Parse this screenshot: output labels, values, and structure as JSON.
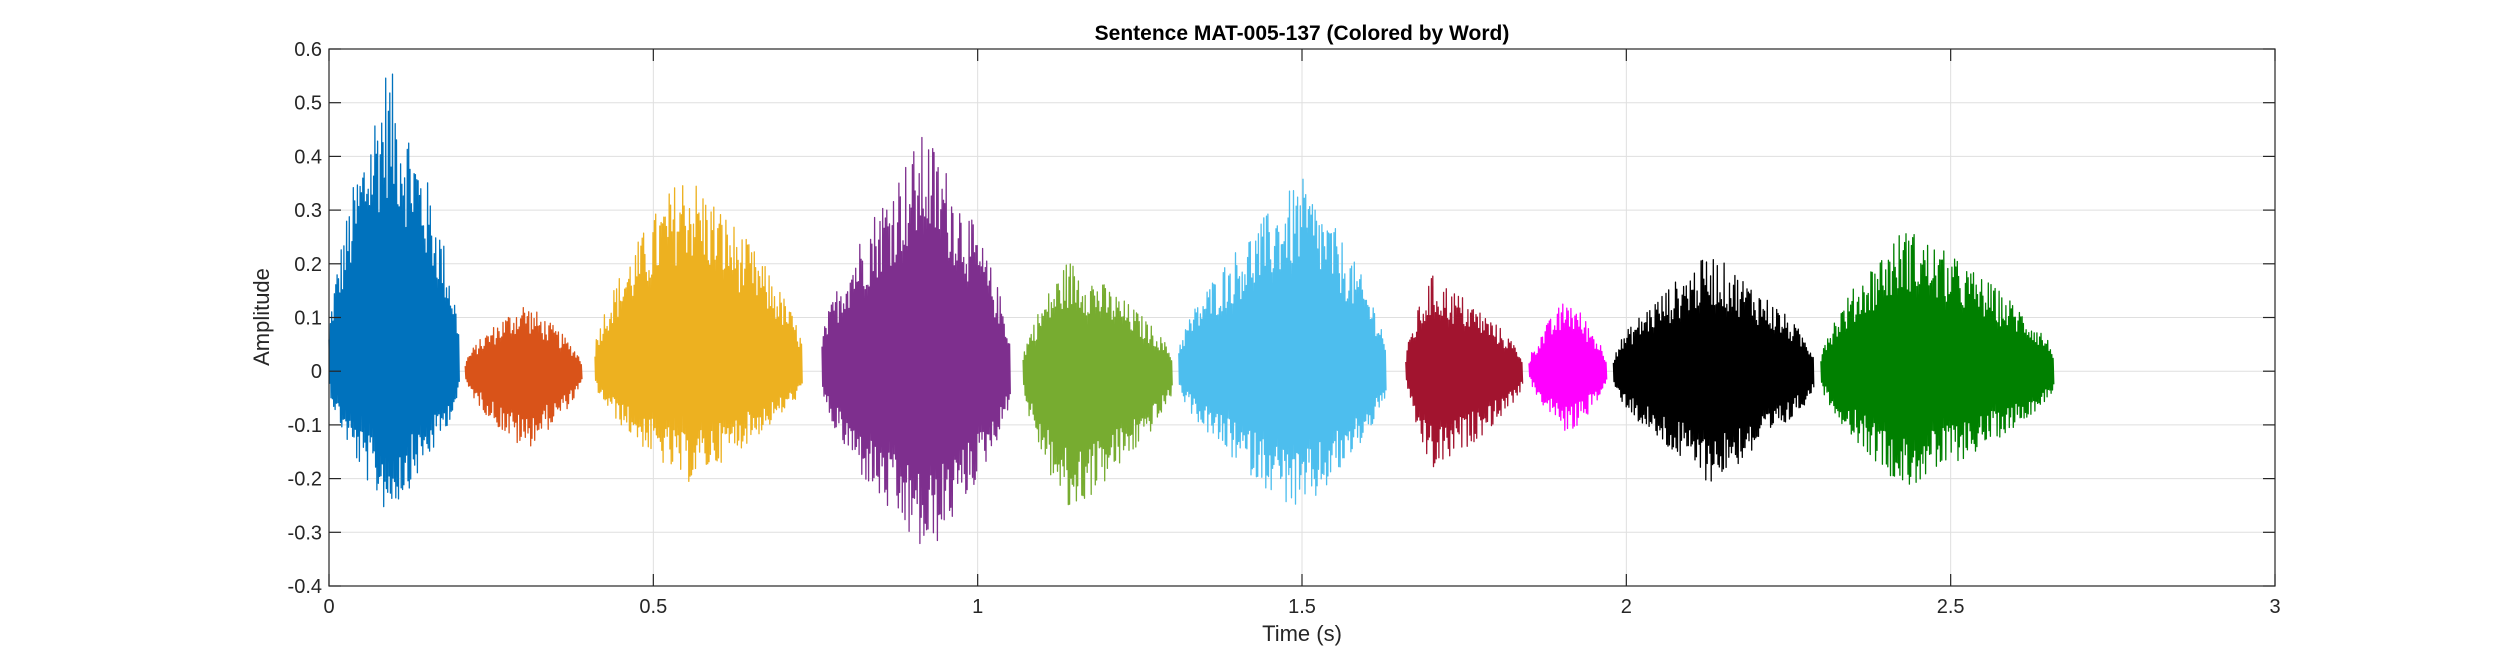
{
  "chart_data": {
    "type": "line",
    "title": "Sentence MAT-005-137 (Colored by Word)",
    "xlabel": "Time (s)",
    "ylabel": "Amplitude",
    "xlim": [
      0,
      3
    ],
    "ylim": [
      -0.4,
      0.6
    ],
    "xticks": [
      0,
      0.5,
      1,
      1.5,
      2,
      2.5,
      3
    ],
    "xtick_labels": [
      "0",
      "0.5",
      "1",
      "1.5",
      "2",
      "2.5",
      "3"
    ],
    "yticks": [
      -0.4,
      -0.3,
      -0.2,
      -0.1,
      0,
      0.1,
      0.2,
      0.3,
      0.4,
      0.5,
      0.6
    ],
    "ytick_labels": [
      "-0.4",
      "-0.3",
      "-0.2",
      "-0.1",
      "0",
      "0.1",
      "0.2",
      "0.3",
      "0.4",
      "0.5",
      "0.6"
    ],
    "grid": true,
    "series": [
      {
        "start": 0.0,
        "end": 0.2,
        "peak_time": 0.09,
        "max": 0.58,
        "min": -0.27,
        "color": "#0072BD"
      },
      {
        "start": 0.21,
        "end": 0.39,
        "peak_time": 0.3,
        "max": 0.13,
        "min": -0.15,
        "color": "#D95319"
      },
      {
        "start": 0.41,
        "end": 0.73,
        "peak_time": 0.55,
        "max": 0.38,
        "min": -0.21,
        "color": "#EDB120"
      },
      {
        "start": 0.76,
        "end": 1.05,
        "peak_time": 0.92,
        "max": 0.45,
        "min": -0.35,
        "color": "#7E2F8E"
      },
      {
        "start": 1.07,
        "end": 1.3,
        "peak_time": 1.14,
        "max": 0.21,
        "min": -0.27,
        "color": "#77AC30"
      },
      {
        "start": 1.31,
        "end": 1.63,
        "peak_time": 1.5,
        "max": 0.36,
        "min": -0.27,
        "color": "#4DBEEE"
      },
      {
        "start": 1.66,
        "end": 1.84,
        "peak_time": 1.7,
        "max": 0.18,
        "min": -0.19,
        "color": "#A2142F"
      },
      {
        "start": 1.85,
        "end": 1.97,
        "peak_time": 1.91,
        "max": 0.14,
        "min": -0.12,
        "color": "#FF00FF"
      },
      {
        "start": 1.98,
        "end": 2.29,
        "peak_time": 2.13,
        "max": 0.22,
        "min": -0.21,
        "color": "#000000"
      },
      {
        "start": 2.3,
        "end": 2.66,
        "peak_time": 2.43,
        "max": 0.27,
        "min": -0.22,
        "color": "#008000"
      }
    ]
  }
}
